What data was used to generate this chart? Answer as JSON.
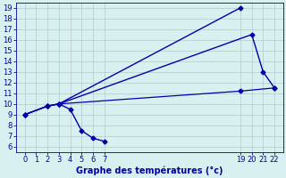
{
  "bg_color": "#d8f0f0",
  "line_color": "#0000aa",
  "grid_color": "#aacece",
  "xlabel": "Graphe des températures (°c)",
  "ylim": [
    5.5,
    19.5
  ],
  "xlim": [
    -0.8,
    22.8
  ],
  "yticks": [
    6,
    7,
    8,
    9,
    10,
    11,
    12,
    13,
    14,
    15,
    16,
    17,
    18,
    19
  ],
  "xticks": [
    0,
    1,
    2,
    3,
    4,
    5,
    6,
    7,
    19,
    20,
    21,
    22
  ],
  "lines": [
    {
      "x": [
        0,
        2,
        3,
        19
      ],
      "y": [
        9,
        9.8,
        10,
        19
      ],
      "marker": "D",
      "markersize": 2.5,
      "linewidth": 1.0
    },
    {
      "x": [
        0,
        2,
        3,
        20,
        21,
        22
      ],
      "y": [
        9,
        9.8,
        10,
        16.5,
        13,
        11.5
      ],
      "marker": "D",
      "markersize": 2.5,
      "linewidth": 1.0
    },
    {
      "x": [
        0,
        2,
        3,
        19,
        22
      ],
      "y": [
        9,
        9.8,
        10,
        11.2,
        11.5
      ],
      "marker": "D",
      "markersize": 2.5,
      "linewidth": 0.9
    },
    {
      "x": [
        3,
        4,
        5,
        6,
        7
      ],
      "y": [
        10,
        9.5,
        7.5,
        6.8,
        6.5
      ],
      "marker": "D",
      "markersize": 2.5,
      "linewidth": 1.0
    }
  ],
  "figsize": [
    3.2,
    2.0
  ],
  "dpi": 100,
  "xlabel_fontsize": 7,
  "tick_fontsize": 6
}
